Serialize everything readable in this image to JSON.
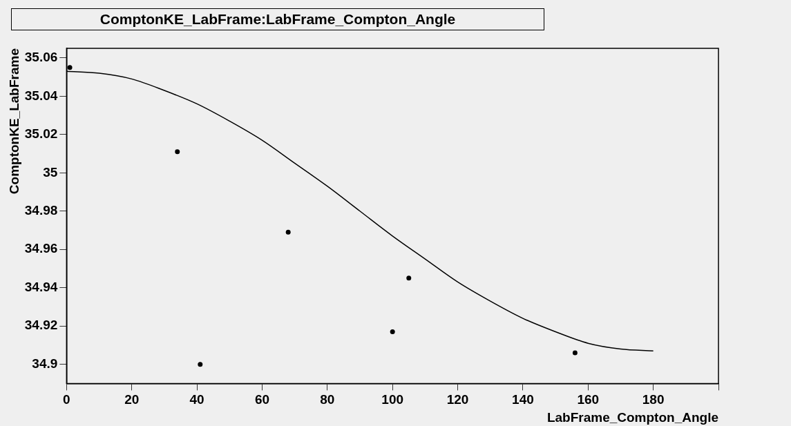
{
  "chart_data": {
    "type": "scatter",
    "title": "ComptonKE_LabFrame:LabFrame_Compton_Angle",
    "xlabel": "LabFrame_Compton_Angle",
    "ylabel": "ComptonKE_LabFrame",
    "xlim": [
      0,
      200
    ],
    "xticks": [
      0,
      20,
      40,
      60,
      80,
      100,
      120,
      140,
      160,
      180,
      {
        "value": 200,
        "label": null
      }
    ],
    "ylim": [
      34.89,
      35.065
    ],
    "yticks": [
      34.9,
      34.92,
      34.94,
      34.96,
      34.98,
      35,
      35.02,
      35.04,
      35.06
    ],
    "grid": false,
    "legend": false,
    "series": [
      {
        "type": "line",
        "marker": "none",
        "color": "#000000",
        "x": [
          0,
          10,
          20,
          30,
          40,
          50,
          60,
          70,
          80,
          90,
          100,
          110,
          120,
          130,
          140,
          150,
          160,
          170,
          180
        ],
        "values": [
          35.053,
          35.052,
          35.049,
          35.043,
          35.036,
          35.027,
          35.017,
          35.005,
          34.993,
          34.98,
          34.967,
          34.955,
          34.943,
          34.933,
          34.924,
          34.917,
          34.911,
          34.908,
          34.907
        ]
      },
      {
        "type": "scatter",
        "marker": "circle",
        "color": "#000000",
        "x": [
          1,
          34,
          41,
          68,
          100,
          105,
          156
        ],
        "values": [
          35.055,
          35.011,
          34.9,
          34.969,
          34.917,
          34.945,
          34.906
        ]
      }
    ]
  }
}
